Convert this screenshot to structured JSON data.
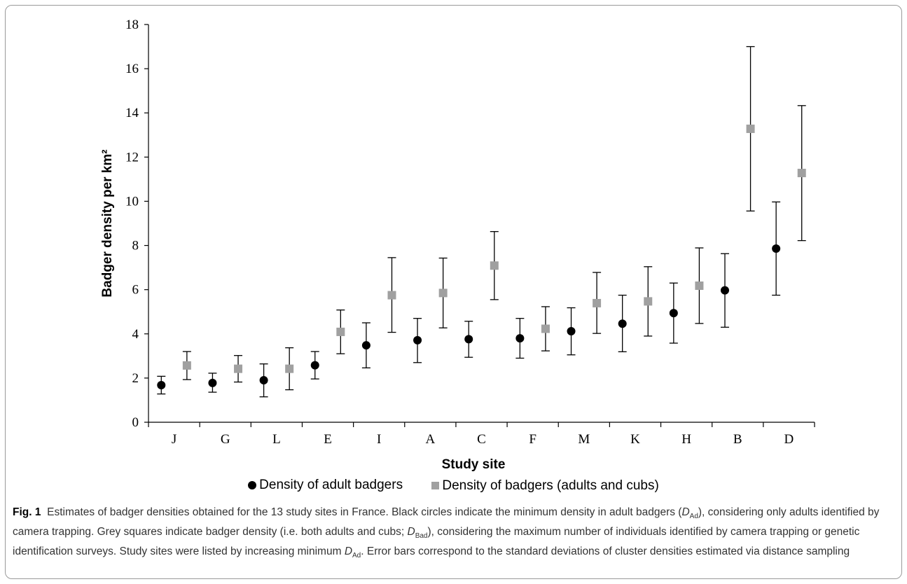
{
  "chart_data": {
    "type": "scatter",
    "categories": [
      "J",
      "G",
      "L",
      "E",
      "I",
      "A",
      "C",
      "F",
      "M",
      "K",
      "H",
      "B",
      "D"
    ],
    "xlabel": "Study site",
    "ylabel": "Badger density per km²",
    "ylim": [
      0,
      18
    ],
    "yticks": [
      0,
      2,
      4,
      6,
      8,
      10,
      12,
      14,
      16,
      18
    ],
    "grid": false,
    "legend_position": "bottom",
    "series": [
      {
        "name": "Density of adult badgers",
        "marker": "circle",
        "color": "#000000",
        "values": [
          1.68,
          1.78,
          1.9,
          2.58,
          3.48,
          3.71,
          3.76,
          3.8,
          4.12,
          4.46,
          4.94,
          5.97,
          7.86
        ],
        "err_low": [
          1.28,
          1.36,
          1.15,
          1.96,
          2.46,
          2.7,
          2.94,
          2.9,
          3.05,
          3.19,
          3.58,
          4.3,
          5.75
        ],
        "err_high": [
          2.08,
          2.22,
          2.64,
          3.2,
          4.5,
          4.7,
          4.57,
          4.7,
          5.18,
          5.75,
          6.3,
          7.63,
          9.97
        ]
      },
      {
        "name": "Density of badgers (adults and cubs)",
        "marker": "square",
        "color": "#a0a0a0",
        "values": [
          2.57,
          2.42,
          2.42,
          4.09,
          5.75,
          5.85,
          7.09,
          4.23,
          5.39,
          5.47,
          6.18,
          13.28,
          11.28
        ],
        "err_low": [
          1.93,
          1.82,
          1.47,
          3.1,
          4.07,
          4.27,
          5.55,
          3.23,
          4.02,
          3.9,
          4.47,
          9.56,
          8.22
        ],
        "err_high": [
          3.2,
          3.02,
          3.37,
          5.08,
          7.45,
          7.43,
          8.63,
          5.23,
          6.78,
          7.04,
          7.89,
          17.0,
          14.33
        ]
      }
    ]
  },
  "legend": {
    "item1": "Density of adult badgers",
    "item2": "Density of badgers (adults and cubs)"
  },
  "caption": {
    "fig_label": "Fig. 1",
    "text1": "Estimates of badger densities obtained for the 13 study sites in France. Black circles indicate the minimum density in adult badgers (",
    "sym1": "D",
    "sub1": "Ad",
    "text2": "), considering only adults identified by camera trapping. Grey squares indicate badger density (i.e. both adults and cubs; ",
    "sym2": "D",
    "sub2": "Bad",
    "text3": "), considering the maximum number of individuals identified by camera trapping or genetic identification surveys. Study sites were listed by increasing minimum ",
    "sym3": "D",
    "sub3": "Ad",
    "text4": ". Error bars correspond to the standard deviations of cluster densities estimated via distance sampling"
  }
}
